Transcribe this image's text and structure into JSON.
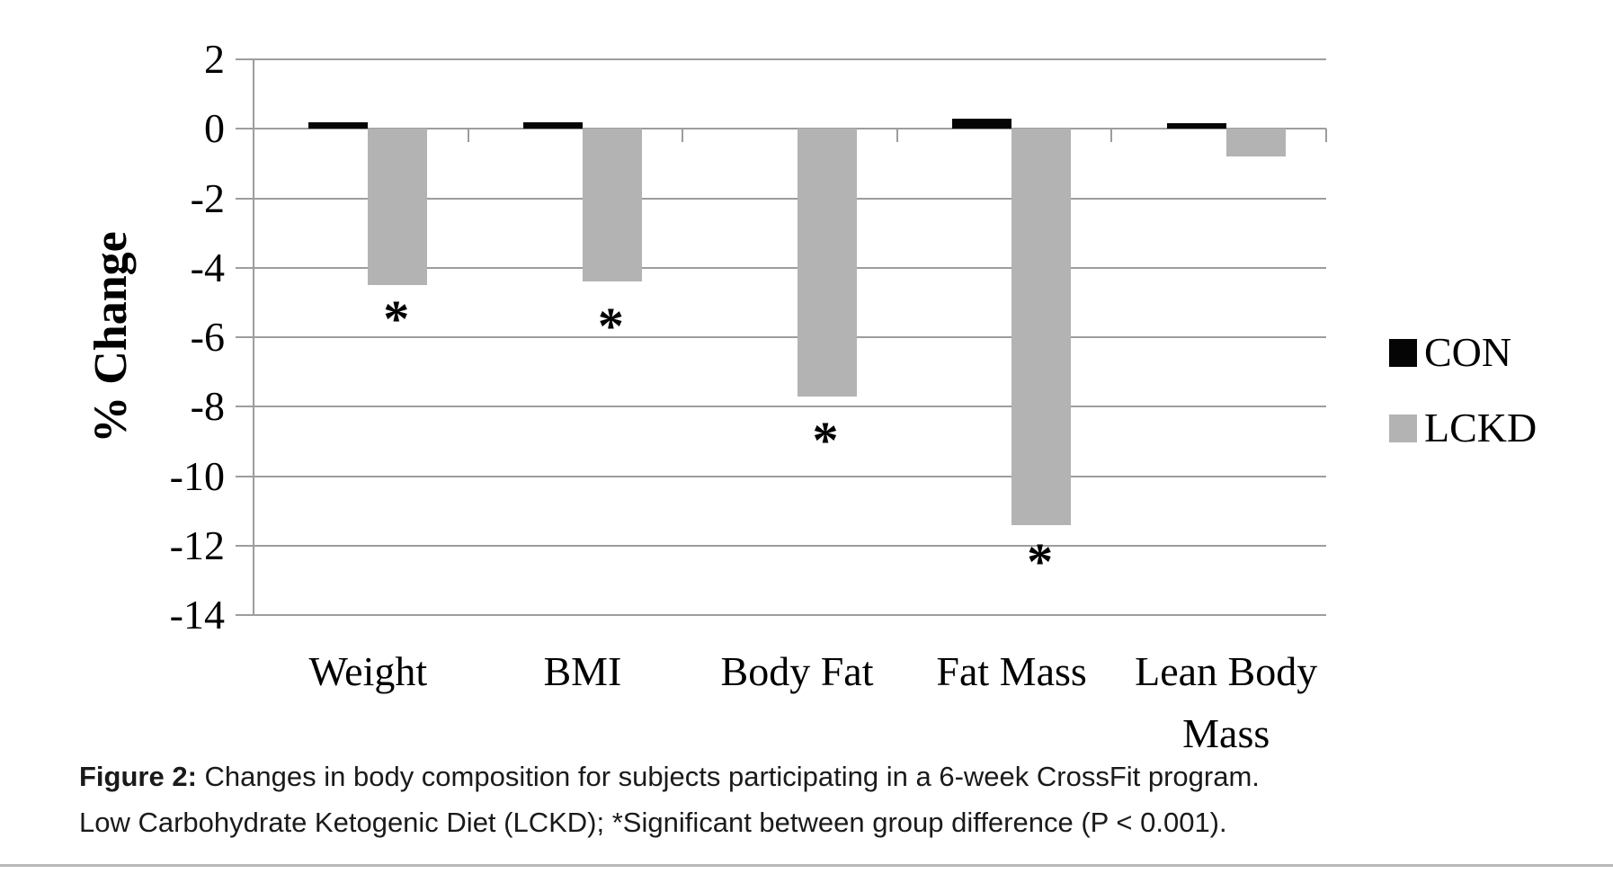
{
  "caption": {
    "label": "Figure 2:",
    "line1": "Changes in body composition for subjects participating in a 6-week CrossFit program.",
    "line2": "Low Carbohydrate Ketogenic Diet (LCKD); *Significant between group difference (P < 0.001)."
  },
  "chart_data": {
    "type": "bar",
    "title": "",
    "xlabel": "",
    "ylabel": "% Change",
    "ylim": [
      -14,
      2
    ],
    "yticks": [
      2,
      0,
      -2,
      -4,
      -6,
      -8,
      -10,
      -12,
      -14
    ],
    "grid": true,
    "legend_position": "right-center",
    "categories": [
      "Weight",
      "BMI",
      "Body Fat",
      "Fat Mass",
      "Lean Body Mass"
    ],
    "series": [
      {
        "name": "CON",
        "color": "#050505",
        "values": [
          0.2,
          0.2,
          0,
          0.3,
          0.15
        ]
      },
      {
        "name": "LCKD",
        "color": "#b3b3b3",
        "values": [
          -4.5,
          -4.4,
          -7.7,
          -11.4,
          -0.8
        ]
      }
    ],
    "significance_markers": {
      "symbol": "*",
      "points": [
        {
          "category": "Weight",
          "series": "LCKD",
          "label_y": -5.3
        },
        {
          "category": "BMI",
          "series": "LCKD",
          "label_y": -5.5
        },
        {
          "category": "Body Fat",
          "series": "LCKD",
          "label_y": -8.8
        },
        {
          "category": "Fat Mass",
          "series": "LCKD",
          "label_y": -12.3
        }
      ]
    }
  }
}
